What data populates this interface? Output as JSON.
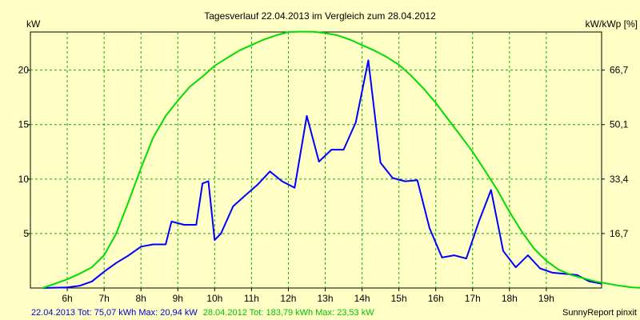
{
  "chart_data": {
    "type": "line",
    "title": "Tagesverlauf 22.04.2013 im Vergleich zum 28.04.2012",
    "ylabel_left": "kW",
    "ylabel_right": "kW/kWp [%]",
    "x_range_hours": [
      5.0,
      20.5
    ],
    "ylim": [
      0,
      23.5
    ],
    "x_ticks": [
      {
        "h": 6,
        "label": "6h"
      },
      {
        "h": 7,
        "label": "7h"
      },
      {
        "h": 8,
        "label": "8h"
      },
      {
        "h": 9,
        "label": "9h"
      },
      {
        "h": 10,
        "label": "10h"
      },
      {
        "h": 11,
        "label": "11h"
      },
      {
        "h": 12,
        "label": "12h"
      },
      {
        "h": 13,
        "label": "13h"
      },
      {
        "h": 14,
        "label": "14h"
      },
      {
        "h": 15,
        "label": "15h"
      },
      {
        "h": 16,
        "label": "16h"
      },
      {
        "h": 17,
        "label": "17h"
      },
      {
        "h": 18,
        "label": "18h"
      },
      {
        "h": 19,
        "label": "19h"
      }
    ],
    "y_ticks_left": [
      {
        "v": 5,
        "label": "5"
      },
      {
        "v": 10,
        "label": "10"
      },
      {
        "v": 15,
        "label": "15"
      },
      {
        "v": 20,
        "label": "20"
      }
    ],
    "y_ticks_right": [
      {
        "v": 5,
        "label": "16,7"
      },
      {
        "v": 10,
        "label": "33,4"
      },
      {
        "v": 15,
        "label": "50,1"
      },
      {
        "v": 20,
        "label": "66,7"
      }
    ],
    "grid": true,
    "series": [
      {
        "name": "22.04.2013",
        "color": "#0000ff",
        "points": [
          [
            5.33,
            0
          ],
          [
            6.0,
            0.05
          ],
          [
            6.33,
            0.2
          ],
          [
            6.67,
            0.6
          ],
          [
            7.0,
            1.5
          ],
          [
            7.33,
            2.3
          ],
          [
            7.67,
            3.0
          ],
          [
            8.0,
            3.8
          ],
          [
            8.33,
            4.0
          ],
          [
            8.67,
            4.0
          ],
          [
            8.83,
            6.1
          ],
          [
            9.17,
            5.8
          ],
          [
            9.5,
            5.8
          ],
          [
            9.67,
            9.6
          ],
          [
            9.83,
            9.8
          ],
          [
            10.0,
            4.4
          ],
          [
            10.17,
            5.0
          ],
          [
            10.5,
            7.5
          ],
          [
            10.83,
            8.5
          ],
          [
            11.17,
            9.5
          ],
          [
            11.5,
            10.7
          ],
          [
            11.83,
            9.8
          ],
          [
            12.17,
            9.2
          ],
          [
            12.5,
            15.8
          ],
          [
            12.83,
            11.6
          ],
          [
            13.17,
            12.7
          ],
          [
            13.5,
            12.7
          ],
          [
            13.83,
            15.2
          ],
          [
            14.17,
            20.9
          ],
          [
            14.5,
            11.5
          ],
          [
            14.83,
            10.1
          ],
          [
            15.17,
            9.8
          ],
          [
            15.5,
            9.9
          ],
          [
            15.83,
            5.5
          ],
          [
            16.17,
            2.8
          ],
          [
            16.5,
            3.0
          ],
          [
            16.83,
            2.7
          ],
          [
            17.17,
            6.1
          ],
          [
            17.5,
            9.0
          ],
          [
            17.83,
            3.4
          ],
          [
            18.17,
            1.9
          ],
          [
            18.5,
            3.0
          ],
          [
            18.83,
            1.8
          ],
          [
            19.17,
            1.4
          ],
          [
            19.5,
            1.3
          ],
          [
            19.83,
            1.2
          ],
          [
            20.17,
            0.6
          ],
          [
            20.5,
            0.4
          ]
        ]
      },
      {
        "name": "28.04.2012",
        "color": "#00dd00",
        "points": [
          [
            5.33,
            0
          ],
          [
            5.67,
            0.4
          ],
          [
            6.0,
            0.8
          ],
          [
            6.33,
            1.3
          ],
          [
            6.67,
            1.9
          ],
          [
            7.0,
            3.0
          ],
          [
            7.33,
            5.0
          ],
          [
            7.67,
            8.0
          ],
          [
            8.0,
            11.0
          ],
          [
            8.33,
            13.8
          ],
          [
            8.67,
            15.8
          ],
          [
            9.0,
            17.2
          ],
          [
            9.33,
            18.5
          ],
          [
            9.67,
            19.4
          ],
          [
            10.0,
            20.4
          ],
          [
            10.33,
            21.1
          ],
          [
            10.67,
            21.8
          ],
          [
            11.0,
            22.3
          ],
          [
            11.33,
            22.8
          ],
          [
            11.67,
            23.2
          ],
          [
            12.0,
            23.5
          ],
          [
            12.33,
            23.53
          ],
          [
            12.67,
            23.53
          ],
          [
            13.0,
            23.4
          ],
          [
            13.33,
            23.2
          ],
          [
            13.67,
            22.8
          ],
          [
            14.0,
            22.3
          ],
          [
            14.33,
            21.8
          ],
          [
            14.67,
            21.2
          ],
          [
            15.0,
            20.5
          ],
          [
            15.33,
            19.5
          ],
          [
            15.67,
            18.3
          ],
          [
            16.0,
            17.0
          ],
          [
            16.33,
            15.5
          ],
          [
            16.67,
            14.0
          ],
          [
            17.0,
            12.5
          ],
          [
            17.33,
            10.8
          ],
          [
            17.67,
            9.0
          ],
          [
            18.0,
            7.0
          ],
          [
            18.33,
            5.2
          ],
          [
            18.67,
            3.6
          ],
          [
            19.0,
            2.5
          ],
          [
            19.33,
            1.7
          ],
          [
            19.67,
            1.2
          ],
          [
            20.0,
            0.9
          ],
          [
            20.33,
            0.6
          ],
          [
            20.67,
            0.4
          ],
          [
            21.0,
            0.2
          ],
          [
            21.33,
            0.05
          ],
          [
            21.67,
            0
          ]
        ]
      }
    ],
    "footer": {
      "series1_text": "22.04.2013 Tot: 75,07 kWh Max: 20,94 kW",
      "series2_text": "28.04.2012 Tot: 183,79 kWh Max: 23,53 kW",
      "credit": "SunnyReport pinxit"
    }
  }
}
